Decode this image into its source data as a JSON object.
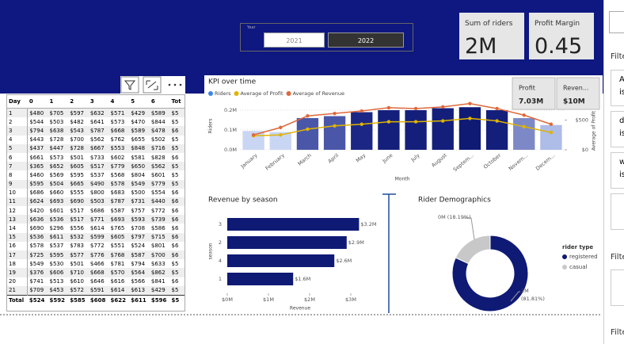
{
  "slicer": {
    "title": "Year",
    "options": [
      "2021",
      "2022"
    ],
    "selected": 1
  },
  "cards": [
    {
      "label": "Sum of riders",
      "value": "2M"
    },
    {
      "label": "Profit Margin",
      "value": "0.45"
    }
  ],
  "table": {
    "header": [
      "Day",
      "0",
      "1",
      "2",
      "3",
      "4",
      "5",
      "6",
      "Tot"
    ],
    "rows": [
      [
        "1",
        "$480",
        "$705",
        "$597",
        "$632",
        "$571",
        "$429",
        "$589",
        "$5"
      ],
      [
        "2",
        "$544",
        "$503",
        "$482",
        "$641",
        "$573",
        "$470",
        "$844",
        "$5"
      ],
      [
        "3",
        "$794",
        "$638",
        "$543",
        "$787",
        "$668",
        "$589",
        "$478",
        "$6"
      ],
      [
        "4",
        "$443",
        "$728",
        "$700",
        "$562",
        "$762",
        "$655",
        "$502",
        "$5"
      ],
      [
        "5",
        "$437",
        "$447",
        "$728",
        "$667",
        "$553",
        "$848",
        "$716",
        "$5"
      ],
      [
        "6",
        "$661",
        "$573",
        "$501",
        "$733",
        "$602",
        "$581",
        "$828",
        "$6"
      ],
      [
        "7",
        "$365",
        "$652",
        "$605",
        "$517",
        "$779",
        "$650",
        "$562",
        "$5"
      ],
      [
        "8",
        "$460",
        "$569",
        "$595",
        "$537",
        "$568",
        "$804",
        "$601",
        "$5"
      ],
      [
        "9",
        "$595",
        "$504",
        "$665",
        "$490",
        "$578",
        "$549",
        "$779",
        "$5"
      ],
      [
        "10",
        "$686",
        "$660",
        "$555",
        "$800",
        "$683",
        "$500",
        "$554",
        "$6"
      ],
      [
        "11",
        "$624",
        "$693",
        "$690",
        "$503",
        "$787",
        "$731",
        "$440",
        "$6"
      ],
      [
        "12",
        "$420",
        "$601",
        "$517",
        "$686",
        "$587",
        "$757",
        "$772",
        "$6"
      ],
      [
        "13",
        "$636",
        "$536",
        "$517",
        "$771",
        "$693",
        "$593",
        "$739",
        "$6"
      ],
      [
        "14",
        "$690",
        "$296",
        "$556",
        "$614",
        "$765",
        "$708",
        "$586",
        "$6"
      ],
      [
        "15",
        "$536",
        "$611",
        "$532",
        "$599",
        "$605",
        "$797",
        "$715",
        "$6"
      ],
      [
        "16",
        "$578",
        "$537",
        "$783",
        "$772",
        "$551",
        "$524",
        "$801",
        "$6"
      ],
      [
        "17",
        "$725",
        "$595",
        "$577",
        "$776",
        "$768",
        "$587",
        "$700",
        "$6"
      ],
      [
        "18",
        "$549",
        "$530",
        "$501",
        "$466",
        "$781",
        "$794",
        "$633",
        "$5"
      ],
      [
        "19",
        "$376",
        "$606",
        "$710",
        "$668",
        "$570",
        "$564",
        "$862",
        "$5"
      ],
      [
        "20",
        "$741",
        "$513",
        "$610",
        "$646",
        "$616",
        "$566",
        "$841",
        "$6"
      ],
      [
        "21",
        "$709",
        "$453",
        "$572",
        "$591",
        "$614",
        "$613",
        "$429",
        "$5"
      ]
    ],
    "total": [
      "Total",
      "$524",
      "$592",
      "$585",
      "$608",
      "$622",
      "$611",
      "$596",
      "$5"
    ]
  },
  "filters_pane": {
    "headings": [
      "Filte",
      "Filte",
      "Filte"
    ],
    "cards": [
      {
        "field": "A",
        "condition": "is"
      },
      {
        "field": "d",
        "condition": "is"
      },
      {
        "field": "w",
        "condition": "is"
      }
    ]
  },
  "chart_data": [
    {
      "type": "combo",
      "title": "KPI over time",
      "categories": [
        "January",
        "February",
        "March",
        "April",
        "May",
        "June",
        "July",
        "August",
        "Septem...",
        "October",
        "Novem...",
        "Decem..."
      ],
      "x_label": "Month",
      "y_label": "Riders",
      "y2_label": "Average of Profit",
      "series": [
        {
          "name": "Riders",
          "color": "#3a86e8",
          "colors": [
            "#c9d6f3",
            "#c9d6f3",
            "#4a57a8",
            "#4a57a8",
            "#1c2785",
            "#141f7c",
            "#141f7c",
            "#141f7c",
            "#0f1a75",
            "#141f7c",
            "#7d89c6",
            "#aebce8"
          ],
          "values": [
            95000,
            90000,
            160000,
            170000,
            190000,
            200000,
            200000,
            210000,
            215000,
            200000,
            160000,
            125000
          ]
        },
        {
          "name": "Average of Profit",
          "color": "#e0b400",
          "axis": "y2",
          "values": [
            236,
            250,
            347,
            403,
            430,
            472,
            472,
            486,
            528,
            486,
            389,
            292
          ]
        },
        {
          "name": "Average of Revenue",
          "color": "#e0683a",
          "axis": "y2",
          "values": [
            250,
            375,
            570,
            611,
            653,
            708,
            694,
            722,
            778,
            694,
            583,
            430
          ]
        }
      ],
      "ylim": [
        0,
        240000
      ],
      "yticks": [
        {
          "value": 0,
          "label": "0.0M"
        },
        {
          "value": 100000,
          "label": "0.1M"
        },
        {
          "value": 200000,
          "label": "0.2M"
        }
      ],
      "y2lim": [
        0,
        800
      ],
      "y2ticks": [
        {
          "value": 0,
          "label": "$0"
        },
        {
          "value": 500,
          "label": "$500"
        }
      ],
      "kpi_cards": [
        {
          "label": "Profit",
          "value": "7.03M"
        },
        {
          "label": "Reven...",
          "value": "$10M"
        }
      ]
    },
    {
      "type": "hbar",
      "title": "Revenue by season",
      "categories": [
        "3",
        "2",
        "4",
        "1"
      ],
      "values": [
        3200000,
        2900000,
        2600000,
        1600000
      ],
      "value_labels": [
        "$3.2M",
        "$2.9M",
        "$2.6M",
        "$1.6M"
      ],
      "color": "#0f1a75",
      "xlim": [
        0,
        3500000
      ],
      "xticks": [
        {
          "value": 0,
          "label": "$0M"
        },
        {
          "value": 1000000,
          "label": "$1M"
        },
        {
          "value": 2000000,
          "label": "$2M"
        },
        {
          "value": 3000000,
          "label": "$3M"
        }
      ],
      "x_label": "Revenue",
      "y_label": "season"
    },
    {
      "type": "donut",
      "title": "Rider Demographics",
      "legend_title": "rider type",
      "categories": [
        "registered",
        "casual"
      ],
      "values": [
        81.81,
        18.19
      ],
      "amount_labels": [
        "2M",
        "0M"
      ],
      "value_labels": [
        "(81.81%)",
        "(18.19%)"
      ],
      "colors": [
        "#0f1a75",
        "#c8c8c8"
      ]
    }
  ]
}
